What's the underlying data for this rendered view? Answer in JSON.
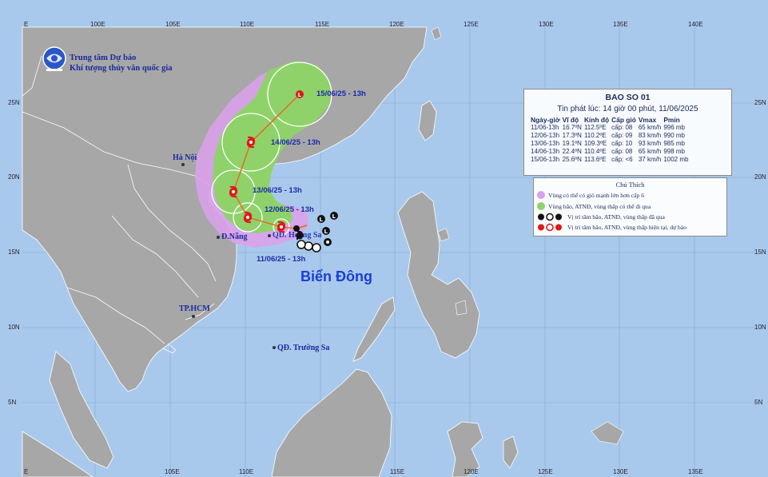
{
  "map": {
    "lon_labels_top": [
      "100E",
      "105E",
      "110E",
      "115E",
      "120E",
      "125E",
      "130E",
      "135E",
      "140E"
    ],
    "lon_labels_bottom": [
      "105E",
      "110E",
      "115E",
      "120E",
      "125E",
      "130E",
      "135E",
      "140E"
    ],
    "lat_labels": [
      "25N",
      "20N",
      "15N",
      "10N",
      "5N"
    ],
    "colors": {
      "sea": "#a9c9ec",
      "land": "#a7a7a7",
      "border": "#ffffff",
      "wind_zone": "#d9a2ea",
      "storm_zone": "#8fd26a",
      "track": "#e0702a"
    }
  },
  "logo": {
    "icon": "nchmf-logo-icon",
    "line1": "Trung tâm Dự báo",
    "line2": "Khí tượng thủy văn quốc gia"
  },
  "places": {
    "hanoi": "Hà Nội",
    "danang": "Đ.Nẵng",
    "hoangsa": "QĐ. Hoàng Sa",
    "hcm": "TP.HCM",
    "truongsa": "QĐ. Trường Sa",
    "sea_name": "Biển Đông"
  },
  "track_labels": [
    "11/06/25 - 13h",
    "12/06/25 - 13h",
    "13/06/25 - 13h",
    "14/06/25 - 13h",
    "15/06/25 - 13h"
  ],
  "bulletin": {
    "title": "BAO SO 01",
    "issued": "Tin phát lúc: 14 giờ 00 phút, 11/06/2025",
    "headers": [
      "Ngày-giờ",
      "Vĩ độ",
      "Kinh độ",
      "Cấp gió",
      "Vmax",
      "Pmin"
    ],
    "rows": [
      [
        "11/06-13h",
        "16.7ºN",
        "112.5ºE",
        "cấp: 08",
        "65 km/h",
        "996 mb"
      ],
      [
        "12/06-13h",
        "17.3ºN",
        "110.2ºE",
        "cấp: 09",
        "83 km/h",
        "990 mb"
      ],
      [
        "13/06-13h",
        "19.1ºN",
        "109.3ºE",
        "cấp: 10",
        "93 km/h",
        "985 mb"
      ],
      [
        "14/06-13h",
        "22.4ºN",
        "110.4ºE",
        "cấp: 08",
        "65 km/h",
        "998 mb"
      ],
      [
        "15/06-13h",
        "25.6ºN",
        "113.6ºE",
        "cấp: <6",
        "37 km/h",
        "1002 mb"
      ]
    ]
  },
  "legend": {
    "title": "Chú Thích",
    "items": [
      "Vùng có thể có gió mạnh lớn hơn cấp 6",
      "Vùng bão, ATNĐ, vùng thấp có thể đi qua",
      "Vị trí tâm bão, ATNĐ, vùng thấp đã qua",
      "Vị trí tâm bão, ATNĐ, vùng thấp hiện tại, dự báo"
    ]
  }
}
